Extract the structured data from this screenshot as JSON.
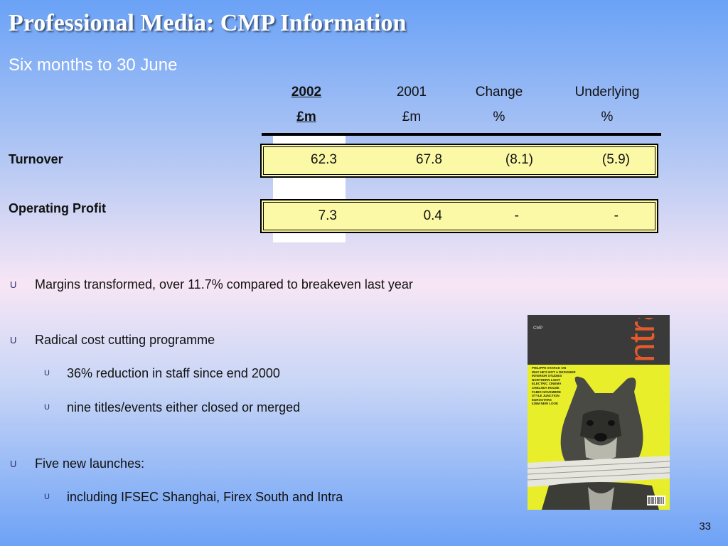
{
  "title": "Professional Media: CMP Information",
  "subtitle": "Six months to 30 June",
  "table": {
    "headers": [
      {
        "year": "2002",
        "unit": "£m"
      },
      {
        "year": "2001",
        "unit": "£m"
      },
      {
        "year": "Change",
        "unit": "%"
      },
      {
        "year": "Underlying",
        "unit": "%"
      }
    ],
    "rows": [
      {
        "label": "Turnover",
        "values": [
          "62.3",
          "67.8",
          "(8.1)",
          "(5.9)"
        ]
      },
      {
        "label": "Operating Profit",
        "values": [
          "7.3",
          "0.4",
          "-",
          "-"
        ]
      }
    ]
  },
  "bullets": [
    {
      "text": "Margins transformed, over 11.7% compared to breakeven last year",
      "level": 1
    },
    {
      "text": "Radical cost cutting programme",
      "level": 1
    },
    {
      "text": "36% reduction in staff since end 2000",
      "level": 2
    },
    {
      "text": "nine titles/events either closed or merged",
      "level": 2
    },
    {
      "text": "Five new launches:",
      "level": 1
    },
    {
      "text": "including IFSEC Shanghai, Firex South and Intra",
      "level": 2
    }
  ],
  "bullet_icon": "U",
  "magazine": {
    "logo": "CMP",
    "masthead": "intra",
    "coverlines": [
      "PHILIPPE STARCK ON",
      "WHY HE'S NOT A DESIGNER",
      "INTERIOR STUDIES",
      "NORTHERN LIGHT",
      "ELECTRIC CINEMA",
      "CHELSEA HOUSE",
      "FABIO NOVEMBRE",
      "STYLE JUNCTION",
      "EUROSTARS",
      "£35M NEW LOOK"
    ]
  },
  "page_number": "33"
}
